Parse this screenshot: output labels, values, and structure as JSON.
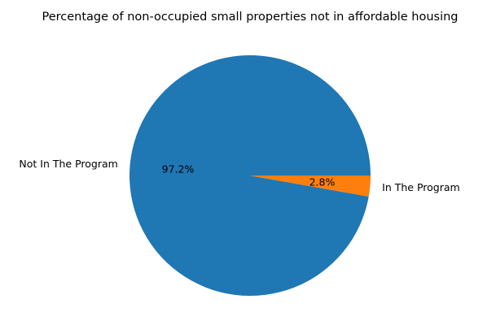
{
  "chart_data": {
    "type": "pie",
    "title": "Percentage of non-occupied small properties not in affordable housing",
    "slices": [
      {
        "label": "Not In The Program",
        "value": 97.2,
        "pct_label": "97.2%",
        "color": "#1f77b4"
      },
      {
        "label": "In The Program",
        "value": 2.8,
        "pct_label": "2.8%",
        "color": "#ff7f0e"
      }
    ],
    "start_angle_deg": 0,
    "direction": "counterclockwise",
    "legend": "none"
  }
}
